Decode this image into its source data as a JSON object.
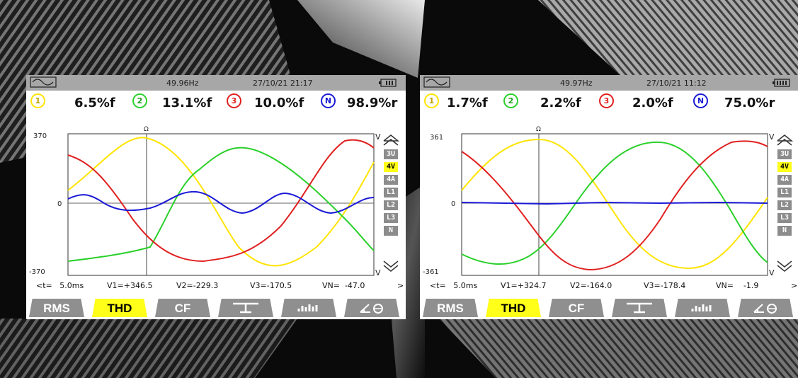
{
  "colors": {
    "L1": "#ffe400",
    "L2": "#2bd02b",
    "L3": "#e02020",
    "N": "#1a1ad6",
    "accent": "#ffff1a",
    "bar": "#a7a7a7",
    "tab": "#8f8f8f"
  },
  "panels": [
    {
      "status": {
        "frequency": "49.96Hz",
        "datetime": "27/10/21  21:17"
      },
      "thd": {
        "ch1": "6.5%f",
        "ch2": "13.1%f",
        "ch3": "10.0%f",
        "chN": "98.9%r"
      },
      "channel_labels": {
        "c1": "1",
        "c2": "2",
        "c3": "3",
        "cn": "N"
      },
      "axis": {
        "top": "370",
        "zero": "0",
        "bottom": "-370",
        "unit": "V",
        "cursor_mark": "Ω"
      },
      "readout": {
        "t": "<t=   5.0ms",
        "v1": "V1=+346.5",
        "v2": "V2=-229.3",
        "v3": "V3=-170.5",
        "vn": "VN=  -47.0",
        "arrow": ">"
      },
      "side_buttons": [
        "3U",
        "4V",
        "4A",
        "L1",
        "L2",
        "L3",
        "N"
      ],
      "active_side": "4V",
      "tabs": {
        "rms": "RMS",
        "thd": "THD",
        "cf": "CF"
      }
    },
    {
      "status": {
        "frequency": "49.97Hz",
        "datetime": "27/10/21  11:12"
      },
      "thd": {
        "ch1": "1.7%f",
        "ch2": "2.2%f",
        "ch3": "2.0%f",
        "chN": "75.0%r"
      },
      "channel_labels": {
        "c1": "1",
        "c2": "2",
        "c3": "3",
        "cn": "N"
      },
      "axis": {
        "top": "361",
        "zero": "0",
        "bottom": "-361",
        "unit": "V",
        "cursor_mark": "Ω"
      },
      "readout": {
        "t": "<t=   5.0ms",
        "v1": "V1=+324.7",
        "v2": "V2=-164.0",
        "v3": "V3=-178.4",
        "vn": "VN=    -1.9",
        "arrow": ">"
      },
      "side_buttons": [
        "3U",
        "4V",
        "4A",
        "L1",
        "L2",
        "L3",
        "N"
      ],
      "active_side": "4V",
      "tabs": {
        "rms": "RMS",
        "thd": "THD",
        "cf": "CF"
      }
    }
  ]
}
